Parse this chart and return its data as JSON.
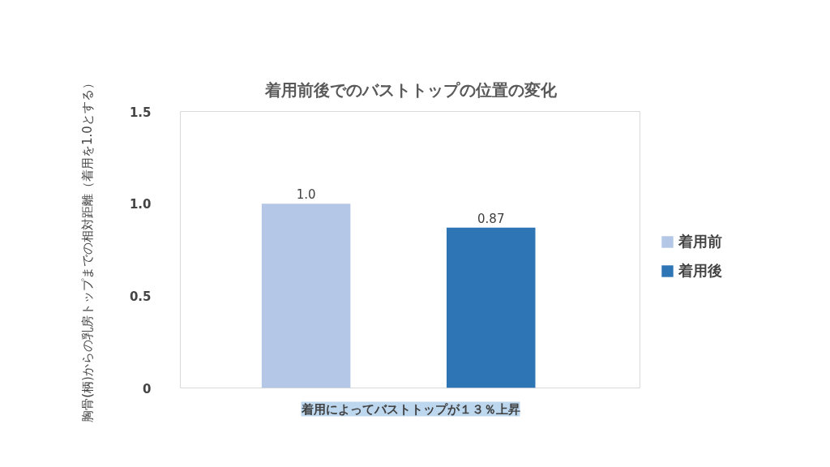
{
  "chart_data": {
    "type": "bar",
    "title": "着用前後でのバストトップの位置の変化",
    "ylabel": "胸骨(柄)からの乳房トップまでの相対距離（着用を1.0とする）",
    "categories": [
      null
    ],
    "series": [
      {
        "name": "着用前",
        "color": "#b4c7e7",
        "values": [
          1.0
        ],
        "value_labels": [
          "1.0"
        ]
      },
      {
        "name": "着用後",
        "color": "#2e75b6",
        "values": [
          0.87
        ],
        "value_labels": [
          "0.87"
        ]
      }
    ],
    "ylim": [
      0,
      1.5
    ],
    "yticks": [
      0,
      {
        "value": 0.5,
        "label": "0.5"
      },
      {
        "value": 1,
        "label": "1.0"
      },
      {
        "value": 1.5,
        "label": "1.5"
      }
    ],
    "annotations": [
      "着用によってバストトップが１３％上昇"
    ],
    "grid": false,
    "legend": "right"
  }
}
